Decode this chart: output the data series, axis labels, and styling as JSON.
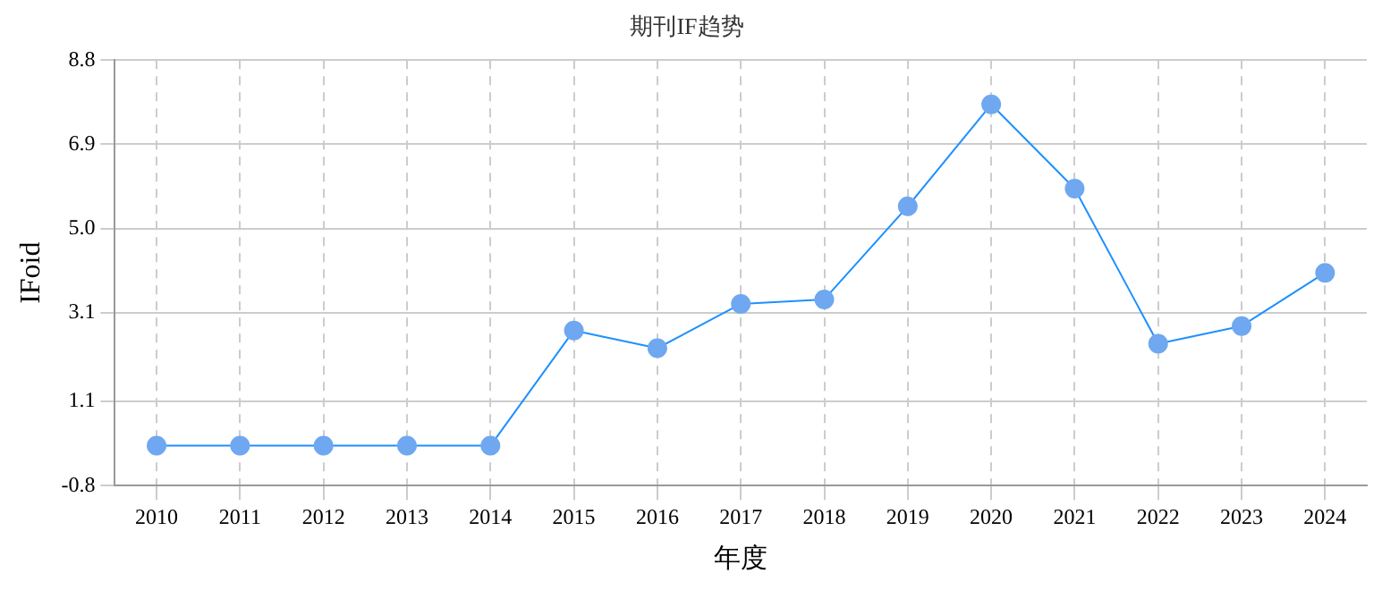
{
  "chart_data": {
    "type": "line",
    "title": "期刊IF趋势",
    "xlabel": "年度",
    "ylabel": "IFoid",
    "categories": [
      "2010",
      "2011",
      "2012",
      "2013",
      "2014",
      "2015",
      "2016",
      "2017",
      "2018",
      "2019",
      "2020",
      "2021",
      "2022",
      "2023",
      "2024"
    ],
    "series": [
      {
        "color": "#1e90ff",
        "values": [
          0.1,
          0.1,
          0.1,
          0.1,
          0.1,
          2.7,
          2.3,
          3.3,
          3.4,
          5.5,
          7.8,
          5.9,
          2.4,
          2.8,
          4.0
        ]
      }
    ],
    "ylim": [
      -0.8,
      8.8
    ],
    "yticks": [
      -0.8,
      1.1,
      3.1,
      {
        "value": 5.0,
        "label": "5.0"
      },
      6.9,
      8.8
    ],
    "grid": true,
    "marker": "circle",
    "line_style": "solid"
  }
}
